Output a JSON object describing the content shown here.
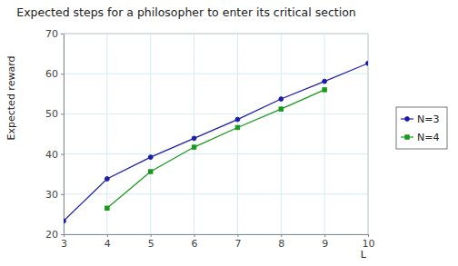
{
  "chart_data": {
    "type": "line",
    "title": "Expected steps for a philosopher to enter its critical section",
    "x_label": "L",
    "y_label": "Expected reward",
    "x": [
      3,
      4,
      5,
      6,
      7,
      8,
      9,
      10
    ],
    "series": [
      {
        "name": "N=3",
        "color": "#1c1ca8",
        "marker": "circle",
        "line_style": "solid",
        "values": [
          23.3,
          33.8,
          39.2,
          43.9,
          48.6,
          53.7,
          58.1,
          62.6
        ]
      },
      {
        "name": "N=4",
        "color": "#17991a",
        "marker": "square",
        "line_style": "solid",
        "values": [
          null,
          26.5,
          35.6,
          41.7,
          46.6,
          51.2,
          56.0,
          null
        ]
      }
    ],
    "xlim": [
      3,
      10
    ],
    "ylim": [
      20,
      70
    ],
    "xticks": [
      3,
      4,
      5,
      6,
      7,
      8,
      9,
      10
    ],
    "yticks": [
      20,
      30,
      40,
      50,
      60,
      70
    ],
    "grid": true,
    "legend": "right"
  }
}
